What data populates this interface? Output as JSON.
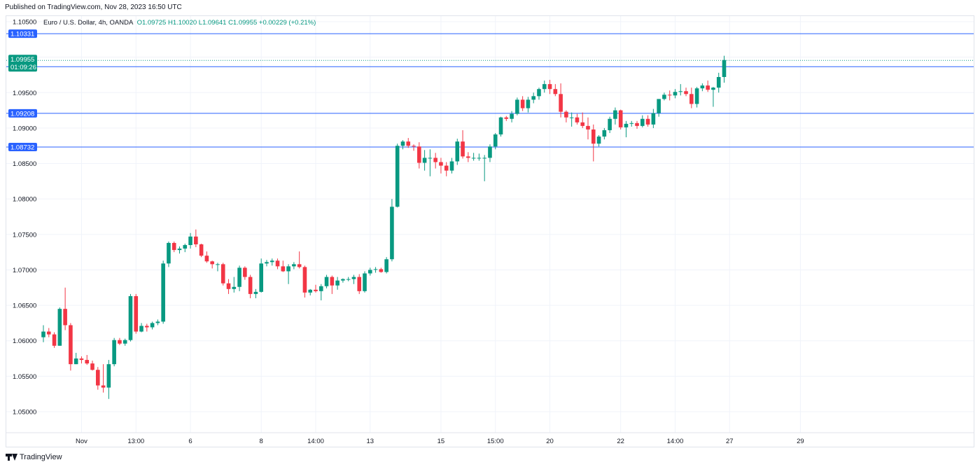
{
  "header": {
    "published": "Published on TradingView.com, Nov 28, 2023 16:50 UTC"
  },
  "symbol": {
    "name": "Euro / U.S. Dollar, 4h, OANDA",
    "open": "O1.09725",
    "high": "H1.10020",
    "low": "L1.09641",
    "close": "C1.09955",
    "change": "+0.00229 (+0.21%)"
  },
  "footer": {
    "brand": "TradingView"
  },
  "colors": {
    "up": "#089981",
    "down": "#f23645",
    "level_line": "#2962ff",
    "grid": "#f0f3fa"
  },
  "chart_data": {
    "type": "candlestick",
    "title": "Euro / U.S. Dollar, 4h, OANDA",
    "ylim": [
      1.0488,
      1.1059
    ],
    "y_ticks": [
      "1.10500",
      "1.10000",
      "1.09500",
      "1.09000",
      "1.08500",
      "1.08000",
      "1.07500",
      "1.07000",
      "1.06500",
      "1.06000",
      "1.05500",
      "1.05000"
    ],
    "x_ticks": [
      {
        "label": "Nov",
        "index": 7
      },
      {
        "label": "13:00",
        "index": 17
      },
      {
        "label": "6",
        "index": 27
      },
      {
        "label": "8",
        "index": 40
      },
      {
        "label": "14:00",
        "index": 50
      },
      {
        "label": "13",
        "index": 60
      },
      {
        "label": "15",
        "index": 73
      },
      {
        "label": "15:00",
        "index": 83
      },
      {
        "label": "20",
        "index": 93
      },
      {
        "label": "22",
        "index": 106
      },
      {
        "label": "14:00",
        "index": 116
      },
      {
        "label": "27",
        "index": 126
      },
      {
        "label": "29",
        "index": 139
      }
    ],
    "levels": [
      {
        "label": "1.10331",
        "value": 1.10331
      },
      {
        "label": "1.09865",
        "value": 1.09865
      },
      {
        "label": "1.09208",
        "value": 1.09208
      },
      {
        "label": "1.08732",
        "value": 1.08732
      }
    ],
    "last_price": {
      "label": "1.09955",
      "countdown": "01:09:26",
      "value": 1.09955
    },
    "candles": [
      [
        1.0605,
        1.0622,
        1.0598,
        1.0613
      ],
      [
        1.0613,
        1.0618,
        1.0605,
        1.0609
      ],
      [
        1.0609,
        1.0612,
        1.059,
        1.0593
      ],
      [
        1.0593,
        1.0647,
        1.0593,
        1.0645
      ],
      [
        1.0645,
        1.0675,
        1.0615,
        1.0622
      ],
      [
        1.0622,
        1.0625,
        1.0558,
        1.0567
      ],
      [
        1.0567,
        1.0583,
        1.0567,
        1.0575
      ],
      [
        1.0575,
        1.0578,
        1.0568,
        1.0573
      ],
      [
        1.0573,
        1.058,
        1.0566,
        1.0568
      ],
      [
        1.0568,
        1.0572,
        1.0558,
        1.0559
      ],
      [
        1.0559,
        1.0563,
        1.0531,
        1.0537
      ],
      [
        1.0537,
        1.0567,
        1.0527,
        1.0534
      ],
      [
        1.0534,
        1.0573,
        1.0518,
        1.0567
      ],
      [
        1.0567,
        1.0604,
        1.0564,
        1.0601
      ],
      [
        1.0601,
        1.0604,
        1.0594,
        1.0596
      ],
      [
        1.0596,
        1.0603,
        1.0593,
        1.0601
      ],
      [
        1.0601,
        1.0666,
        1.0599,
        1.0663
      ],
      [
        1.0663,
        1.0666,
        1.061,
        1.0613
      ],
      [
        1.0613,
        1.0625,
        1.0612,
        1.0621
      ],
      [
        1.0621,
        1.0624,
        1.0613,
        1.0619
      ],
      [
        1.0619,
        1.0627,
        1.0616,
        1.0625
      ],
      [
        1.0625,
        1.063,
        1.0622,
        1.0627
      ],
      [
        1.0627,
        1.0713,
        1.0624,
        1.0709
      ],
      [
        1.0709,
        1.074,
        1.0704,
        1.0738
      ],
      [
        1.0738,
        1.074,
        1.0725,
        1.0728
      ],
      [
        1.0728,
        1.0733,
        1.0723,
        1.073
      ],
      [
        1.073,
        1.0737,
        1.0725,
        1.0735
      ],
      [
        1.0735,
        1.0752,
        1.073,
        1.0747
      ],
      [
        1.0747,
        1.0757,
        1.0732,
        1.0736
      ],
      [
        1.0736,
        1.0737,
        1.0718,
        1.072
      ],
      [
        1.072,
        1.0726,
        1.071,
        1.0712
      ],
      [
        1.0712,
        1.0713,
        1.0702,
        1.0708
      ],
      [
        1.0708,
        1.071,
        1.0698,
        1.0708
      ],
      [
        1.0708,
        1.071,
        1.0678,
        1.0681
      ],
      [
        1.0681,
        1.0687,
        1.0666,
        1.0673
      ],
      [
        1.0673,
        1.069,
        1.0668,
        1.0676
      ],
      [
        1.0676,
        1.0706,
        1.067,
        1.0703
      ],
      [
        1.0703,
        1.0705,
        1.0686,
        1.069
      ],
      [
        1.069,
        1.0693,
        1.066,
        1.0666
      ],
      [
        1.0666,
        1.0673,
        1.066,
        1.0669
      ],
      [
        1.0669,
        1.0716,
        1.0668,
        1.0709
      ],
      [
        1.0709,
        1.0714,
        1.0705,
        1.0711
      ],
      [
        1.0711,
        1.0716,
        1.0706,
        1.0713
      ],
      [
        1.0713,
        1.0716,
        1.0701,
        1.0705
      ],
      [
        1.0705,
        1.0713,
        1.0697,
        1.0698
      ],
      [
        1.0698,
        1.0708,
        1.068,
        1.0705
      ],
      [
        1.0705,
        1.0711,
        1.0701,
        1.0708
      ],
      [
        1.0708,
        1.0726,
        1.0702,
        1.0704
      ],
      [
        1.0704,
        1.0706,
        1.0661,
        1.0668
      ],
      [
        1.0668,
        1.0673,
        1.0664,
        1.0672
      ],
      [
        1.0672,
        1.0679,
        1.0668,
        1.067
      ],
      [
        1.067,
        1.068,
        1.0657,
        1.0677
      ],
      [
        1.0677,
        1.0693,
        1.0674,
        1.069
      ],
      [
        1.069,
        1.0692,
        1.0666,
        1.0678
      ],
      [
        1.0678,
        1.069,
        1.0672,
        1.0685
      ],
      [
        1.0685,
        1.0688,
        1.0682,
        1.0687
      ],
      [
        1.0687,
        1.069,
        1.0684,
        1.0687
      ],
      [
        1.0687,
        1.0693,
        1.068,
        1.069
      ],
      [
        1.069,
        1.0694,
        1.0666,
        1.067
      ],
      [
        1.067,
        1.0698,
        1.0668,
        1.0695
      ],
      [
        1.0695,
        1.0703,
        1.0692,
        1.07
      ],
      [
        1.07,
        1.0704,
        1.0696,
        1.0701
      ],
      [
        1.0701,
        1.0703,
        1.0696,
        1.0697
      ],
      [
        1.0697,
        1.0718,
        1.0695,
        1.0715
      ],
      [
        1.0715,
        1.08,
        1.0712,
        1.0789
      ],
      [
        1.0789,
        1.0878,
        1.0788,
        1.0875
      ],
      [
        1.0875,
        1.0883,
        1.087,
        1.0881
      ],
      [
        1.0881,
        1.0886,
        1.0872,
        1.0875
      ],
      [
        1.0875,
        1.0877,
        1.0868,
        1.0874
      ],
      [
        1.0874,
        1.088,
        1.0843,
        1.0851
      ],
      [
        1.0851,
        1.0869,
        1.084,
        1.0858
      ],
      [
        1.0858,
        1.087,
        1.0832,
        1.0858
      ],
      [
        1.0858,
        1.0865,
        1.0843,
        1.0852
      ],
      [
        1.0852,
        1.0858,
        1.0836,
        1.0847
      ],
      [
        1.0847,
        1.0852,
        1.0832,
        1.084
      ],
      [
        1.084,
        1.0858,
        1.0836,
        1.0853
      ],
      [
        1.0853,
        1.0885,
        1.0848,
        1.0881
      ],
      [
        1.0881,
        1.0897,
        1.0857,
        1.086
      ],
      [
        1.086,
        1.0866,
        1.0852,
        1.0858
      ],
      [
        1.0858,
        1.0865,
        1.0854,
        1.0858
      ],
      [
        1.0858,
        1.0864,
        1.0854,
        1.0858
      ],
      [
        1.0858,
        1.0862,
        1.0825,
        1.0858
      ],
      [
        1.0858,
        1.0877,
        1.0852,
        1.0874
      ],
      [
        1.0874,
        1.0893,
        1.087,
        1.0891
      ],
      [
        1.0891,
        1.0916,
        1.0888,
        1.0915
      ],
      [
        1.0915,
        1.0917,
        1.091,
        1.0913
      ],
      [
        1.0913,
        1.0924,
        1.0908,
        1.092
      ],
      [
        1.092,
        1.0943,
        1.0918,
        1.094
      ],
      [
        1.094,
        1.0945,
        1.0924,
        1.0928
      ],
      [
        1.0928,
        1.0944,
        1.0922,
        1.094
      ],
      [
        1.094,
        1.095,
        1.0935,
        1.0945
      ],
      [
        1.0945,
        1.0957,
        1.094,
        1.0955
      ],
      [
        1.0955,
        1.0967,
        1.095,
        1.0962
      ],
      [
        1.0962,
        1.0968,
        1.0948,
        1.0955
      ],
      [
        1.0955,
        1.0962,
        1.0945,
        1.0948
      ],
      [
        1.0948,
        1.0963,
        1.0915,
        1.0923
      ],
      [
        1.0923,
        1.0925,
        1.0908,
        1.0915
      ],
      [
        1.0915,
        1.0922,
        1.0902,
        1.0915
      ],
      [
        1.0915,
        1.092,
        1.0905,
        1.0908
      ],
      [
        1.0908,
        1.0922,
        1.09,
        1.0903
      ],
      [
        1.0903,
        1.0915,
        1.0884,
        1.0898
      ],
      [
        1.0898,
        1.0905,
        1.0853,
        1.0878
      ],
      [
        1.0878,
        1.089,
        1.0874,
        1.0888
      ],
      [
        1.0888,
        1.09,
        1.0884,
        1.0897
      ],
      [
        1.0897,
        1.0916,
        1.0893,
        1.0913
      ],
      [
        1.0913,
        1.0929,
        1.0905,
        1.0925
      ],
      [
        1.0925,
        1.0926,
        1.0898,
        1.0901
      ],
      [
        1.0901,
        1.091,
        1.0887,
        1.0906
      ],
      [
        1.0906,
        1.091,
        1.0902,
        1.0907
      ],
      [
        1.0907,
        1.091,
        1.0899,
        1.0903
      ],
      [
        1.0903,
        1.0918,
        1.0901,
        1.0913
      ],
      [
        1.0913,
        1.0918,
        1.0902,
        1.0905
      ],
      [
        1.0905,
        1.0927,
        1.09,
        1.0921
      ],
      [
        1.0921,
        1.0938,
        1.0916,
        1.0941
      ],
      [
        1.0941,
        1.095,
        1.0939,
        1.0947
      ],
      [
        1.0947,
        1.0953,
        1.0939,
        1.0946
      ],
      [
        1.0946,
        1.0955,
        1.0942,
        1.0951
      ],
      [
        1.0951,
        1.0962,
        1.0946,
        1.0952
      ],
      [
        1.0952,
        1.0957,
        1.0945,
        1.0948
      ],
      [
        1.0948,
        1.0957,
        1.0928,
        1.0934
      ],
      [
        1.0934,
        1.0958,
        1.0929,
        1.0956
      ],
      [
        1.0956,
        1.0963,
        1.0952,
        1.096
      ],
      [
        1.096,
        1.0967,
        1.0951,
        1.0954
      ],
      [
        1.0954,
        1.0958,
        1.093,
        1.0957
      ],
      [
        1.0957,
        1.0978,
        1.095,
        1.0972
      ],
      [
        1.0972,
        1.1002,
        1.0964,
        1.0996
      ]
    ]
  }
}
